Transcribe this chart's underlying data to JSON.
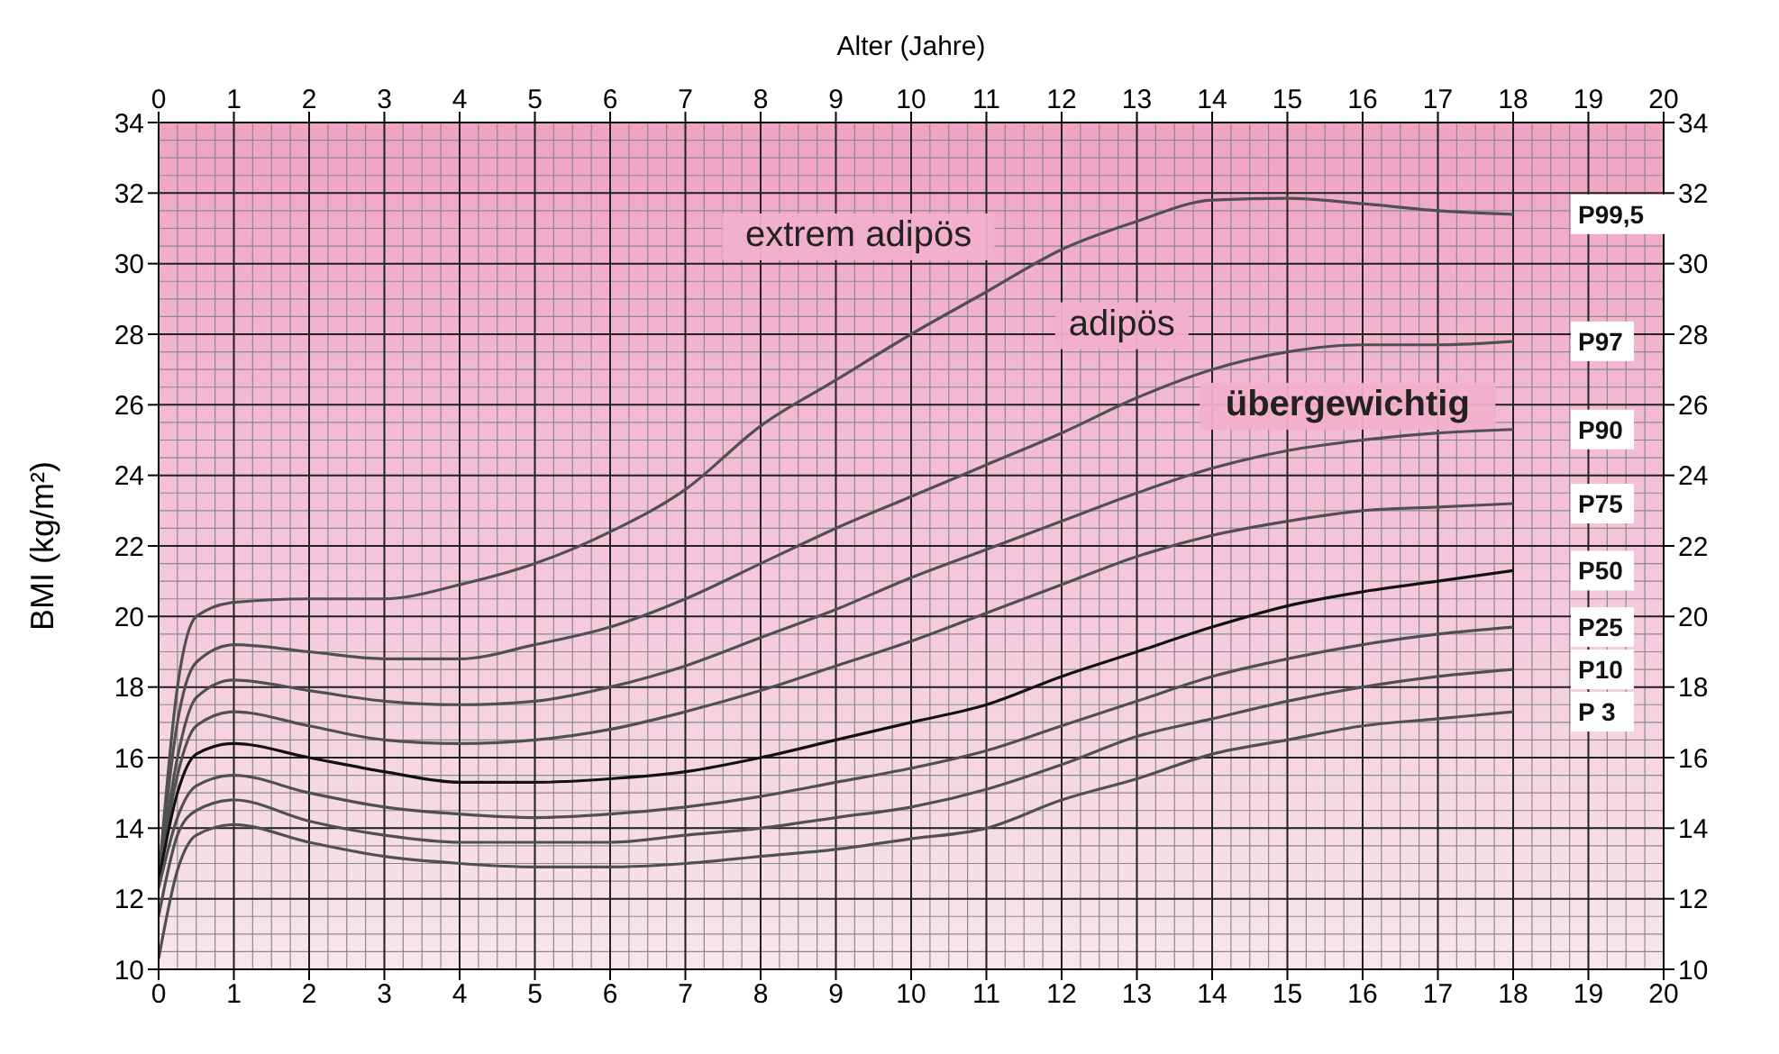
{
  "chart_data": {
    "type": "line",
    "x2label": "Alter (Jahre)",
    "ylabel": "BMI (kg/m²)",
    "x": [
      0,
      0.25,
      0.5,
      1,
      2,
      3,
      4,
      5,
      6,
      7,
      8,
      9,
      10,
      11,
      12,
      13,
      14,
      15,
      16,
      17,
      18
    ],
    "series": [
      {
        "name": "P99,5",
        "color": "#505050",
        "values": [
          12.5,
          18,
          20,
          20.4,
          20.5,
          20.5,
          20.9,
          21.5,
          22.4,
          23.6,
          25.4,
          26.7,
          28.0,
          29.2,
          30.4,
          31.2,
          31.8,
          31.85,
          31.7,
          31.5,
          31.4
        ]
      },
      {
        "name": "P97",
        "color": "#505050",
        "values": [
          12.5,
          17,
          18.7,
          19.2,
          19.0,
          18.8,
          18.8,
          19.2,
          19.7,
          20.5,
          21.5,
          22.5,
          23.4,
          24.3,
          25.2,
          26.2,
          27.0,
          27.5,
          27.7,
          27.7,
          27.8
        ]
      },
      {
        "name": "P90",
        "color": "#505050",
        "values": [
          12.5,
          16,
          17.7,
          18.2,
          17.9,
          17.6,
          17.5,
          17.6,
          18.0,
          18.6,
          19.4,
          20.2,
          21.1,
          21.9,
          22.7,
          23.5,
          24.2,
          24.7,
          25.0,
          25.2,
          25.3
        ]
      },
      {
        "name": "P75",
        "color": "#505050",
        "values": [
          12.5,
          15.5,
          16.9,
          17.3,
          16.9,
          16.5,
          16.4,
          16.5,
          16.8,
          17.3,
          17.9,
          18.6,
          19.3,
          20.1,
          20.9,
          21.7,
          22.3,
          22.7,
          23.0,
          23.1,
          23.2
        ]
      },
      {
        "name": "P50",
        "color": "#111111",
        "values": [
          12.5,
          15,
          16.1,
          16.4,
          16.0,
          15.6,
          15.3,
          15.3,
          15.4,
          15.6,
          16.0,
          16.5,
          17.0,
          17.5,
          18.3,
          19.0,
          19.7,
          20.3,
          20.7,
          21.0,
          21.3
        ]
      },
      {
        "name": "P25",
        "color": "#505050",
        "values": [
          12.3,
          14.3,
          15.2,
          15.5,
          15.0,
          14.6,
          14.4,
          14.3,
          14.4,
          14.6,
          14.9,
          15.3,
          15.7,
          16.2,
          16.9,
          17.6,
          18.3,
          18.8,
          19.2,
          19.5,
          19.7
        ]
      },
      {
        "name": "P10",
        "color": "#505050",
        "values": [
          11.5,
          13.8,
          14.5,
          14.8,
          14.2,
          13.8,
          13.6,
          13.6,
          13.6,
          13.8,
          14.0,
          14.3,
          14.6,
          15.1,
          15.8,
          16.6,
          17.1,
          17.6,
          18.0,
          18.3,
          18.5
        ]
      },
      {
        "name": "P 3",
        "color": "#505050",
        "values": [
          10.3,
          12.8,
          13.8,
          14.1,
          13.6,
          13.2,
          13.0,
          12.9,
          12.9,
          13.0,
          13.2,
          13.4,
          13.7,
          14.0,
          14.8,
          15.4,
          16.1,
          16.5,
          16.9,
          17.1,
          17.3
        ]
      }
    ],
    "xlim": [
      0,
      20
    ],
    "xticks": [
      0,
      1,
      2,
      3,
      4,
      5,
      6,
      7,
      8,
      9,
      10,
      11,
      12,
      13,
      14,
      15,
      16,
      17,
      18,
      19,
      20
    ],
    "x2lim": [
      0,
      20
    ],
    "x2ticks": [
      0,
      1,
      2,
      3,
      4,
      5,
      6,
      7,
      8,
      9,
      10,
      11,
      12,
      13,
      14,
      15,
      16,
      17,
      18,
      19,
      20
    ],
    "ylim": [
      10,
      34
    ],
    "yticks": [
      10,
      12,
      14,
      16,
      18,
      20,
      22,
      24,
      26,
      28,
      30,
      32,
      34
    ],
    "y2lim": [
      10,
      34
    ],
    "y2ticks": [
      10,
      12,
      14,
      16,
      18,
      20,
      22,
      24,
      26,
      28,
      30,
      32,
      34
    ],
    "annotations": [
      "extrem adipös",
      "adipös",
      "übergewichtig"
    ],
    "grid": true,
    "legend": false,
    "marker": "none",
    "line_style": "solid"
  }
}
